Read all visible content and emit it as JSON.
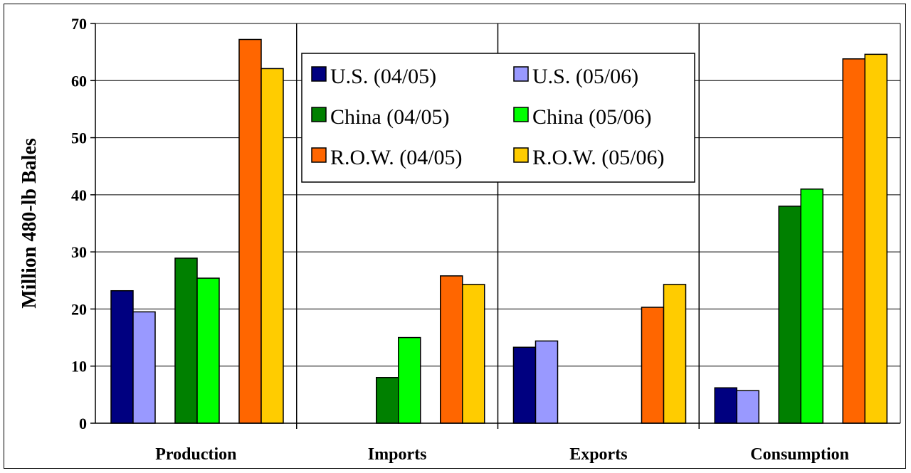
{
  "chart_data": {
    "type": "bar",
    "title": "",
    "xlabel": "",
    "ylabel": "Million 480-lb Bales",
    "ylim": [
      0,
      70
    ],
    "yticks": [
      0,
      10,
      20,
      30,
      40,
      50,
      60,
      70
    ],
    "grid": true,
    "legend_position": "top-center",
    "categories": [
      "Production",
      "Imports",
      "Exports",
      "Consumption"
    ],
    "series": [
      {
        "name": "U.S. (04/05)",
        "color": "#000080",
        "values": [
          23.2,
          null,
          13.3,
          6.2
        ]
      },
      {
        "name": "U.S. (05/06)",
        "color": "#9999ff",
        "values": [
          19.5,
          null,
          14.4,
          5.7
        ]
      },
      {
        "name": "China (04/05)",
        "color": "#008000",
        "values": [
          28.9,
          8.0,
          null,
          38.0
        ]
      },
      {
        "name": "China (05/06)",
        "color": "#00ff00",
        "values": [
          25.4,
          15.0,
          null,
          41.0
        ]
      },
      {
        "name": "R.O.W. (04/05)",
        "color": "#ff6600",
        "values": [
          67.2,
          25.8,
          20.3,
          63.8
        ]
      },
      {
        "name": "R.O.W. (05/06)",
        "color": "#ffcc00",
        "values": [
          62.1,
          24.3,
          24.3,
          64.6
        ]
      }
    ]
  }
}
